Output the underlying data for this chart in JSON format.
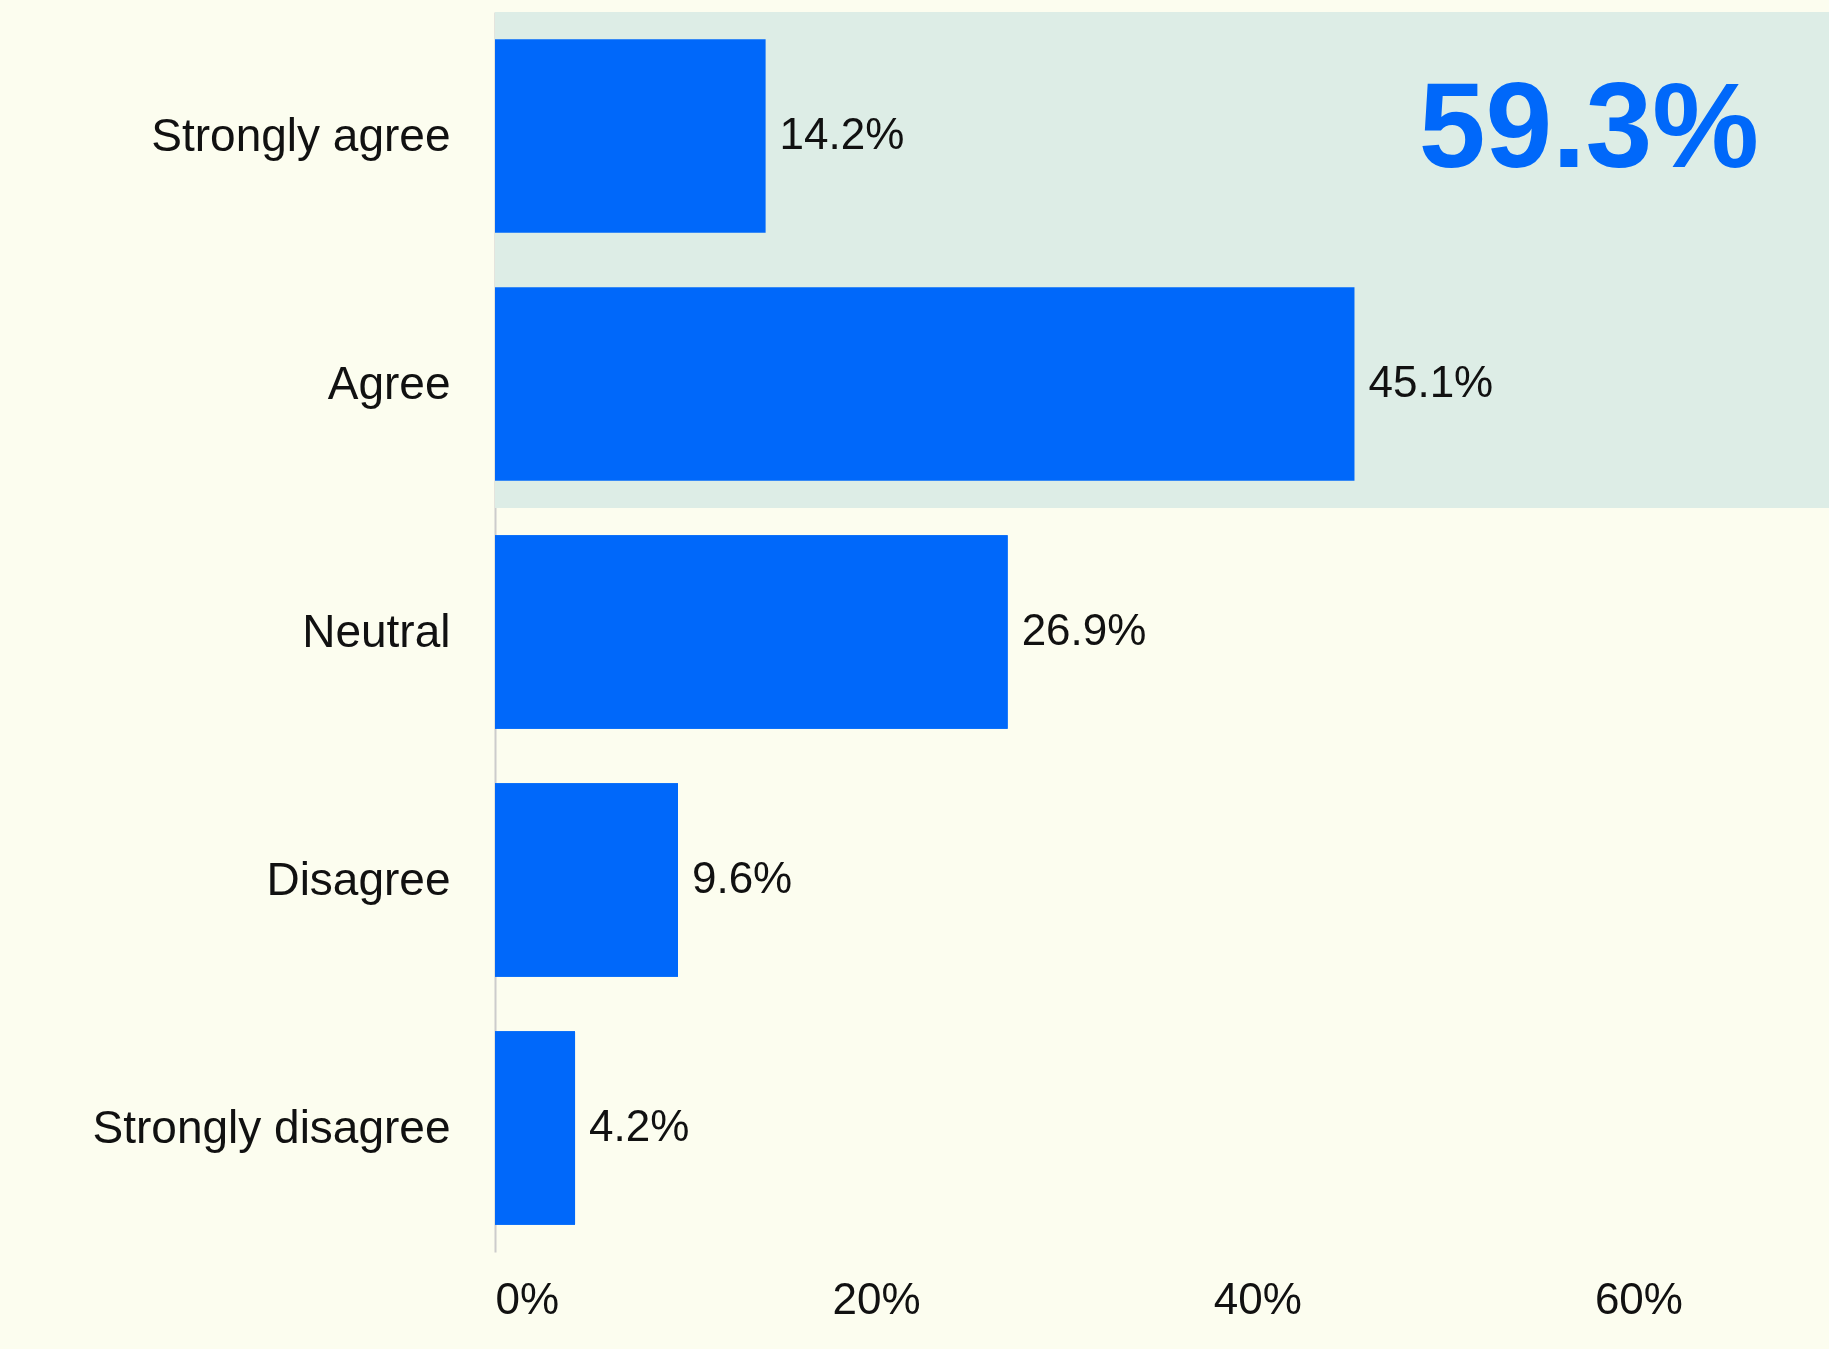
{
  "chart_data": {
    "type": "bar",
    "orientation": "horizontal",
    "categories": [
      "Strongly agree",
      "Agree",
      "Neutral",
      "Disagree",
      "Strongly disagree"
    ],
    "values": [
      14.2,
      45.1,
      26.9,
      9.6,
      4.2
    ],
    "color": "#0068fa",
    "value_labels": [
      "14.2%",
      "45.1%",
      "26.9%",
      "9.6%",
      "4.2%"
    ],
    "xlim": [
      0,
      70
    ],
    "xticks": [
      {
        "value": 0,
        "label": "0%"
      },
      {
        "value": 20,
        "label": "20%"
      },
      {
        "value": 40,
        "label": "40%"
      },
      {
        "value": 60,
        "label": "60%"
      }
    ],
    "bands": [
      {
        "axis": "y",
        "from": "Strongly agree",
        "to": "Agree",
        "label": "59.3%",
        "color": "#ddede6"
      }
    ],
    "grid": false
  }
}
